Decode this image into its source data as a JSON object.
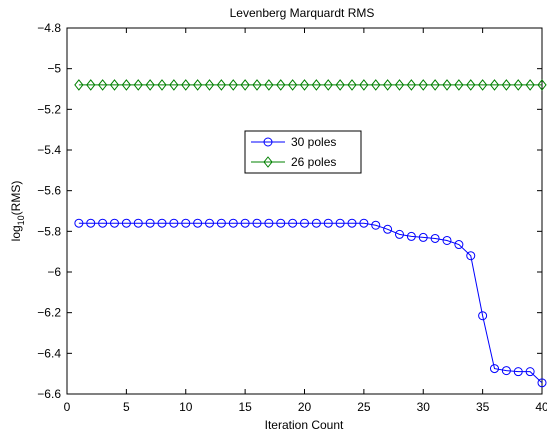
{
  "chart_data": {
    "type": "line",
    "title": "Levenberg Marquardt RMS",
    "xlabel": "Iteration Count",
    "ylabel": "log10(RMS)",
    "ylabel_main": "log",
    "ylabel_sub": "10",
    "ylabel_tail": "(RMS)",
    "xlim": [
      0,
      40
    ],
    "ylim": [
      -6.6,
      -4.8
    ],
    "xticks": [
      0,
      5,
      10,
      15,
      20,
      25,
      30,
      35,
      40
    ],
    "yticks": [
      -4.8,
      -5,
      -5.2,
      -5.4,
      -5.6,
      -5.8,
      -6,
      -6.2,
      -6.4,
      -6.6
    ],
    "ytick_labels": [
      "−4.8",
      "−5",
      "−5.2",
      "−5.4",
      "−5.6",
      "−5.8",
      "−6",
      "−6.2",
      "−6.4",
      "−6.6"
    ],
    "grid": false,
    "legend_position": "center",
    "x": [
      1,
      2,
      3,
      4,
      5,
      6,
      7,
      8,
      9,
      10,
      11,
      12,
      13,
      14,
      15,
      16,
      17,
      18,
      19,
      20,
      21,
      22,
      23,
      24,
      25,
      26,
      27,
      28,
      29,
      30,
      31,
      32,
      33,
      34,
      35,
      36,
      37,
      38,
      39,
      40
    ],
    "series": [
      {
        "name": "30 poles",
        "color": "#0000ff",
        "marker": "circle",
        "values": [
          -5.76,
          -5.76,
          -5.76,
          -5.76,
          -5.76,
          -5.76,
          -5.76,
          -5.76,
          -5.76,
          -5.76,
          -5.76,
          -5.76,
          -5.76,
          -5.76,
          -5.76,
          -5.76,
          -5.76,
          -5.76,
          -5.76,
          -5.76,
          -5.76,
          -5.76,
          -5.76,
          -5.76,
          -5.76,
          -5.77,
          -5.79,
          -5.815,
          -5.825,
          -5.83,
          -5.835,
          -5.845,
          -5.865,
          -5.92,
          -6.215,
          -6.475,
          -6.485,
          -6.49,
          -6.49,
          -6.545
        ]
      },
      {
        "name": "26 poles",
        "color": "#008000",
        "marker": "diamond",
        "values": [
          -5.08,
          -5.08,
          -5.08,
          -5.08,
          -5.08,
          -5.08,
          -5.08,
          -5.08,
          -5.08,
          -5.08,
          -5.08,
          -5.08,
          -5.08,
          -5.08,
          -5.08,
          -5.08,
          -5.08,
          -5.08,
          -5.08,
          -5.08,
          -5.08,
          -5.08,
          -5.08,
          -5.08,
          -5.08,
          -5.08,
          -5.08,
          -5.08,
          -5.08,
          -5.08,
          -5.08,
          -5.08,
          -5.08,
          -5.08,
          -5.08,
          -5.08,
          -5.08,
          -5.08,
          -5.08,
          -5.08
        ]
      }
    ]
  }
}
